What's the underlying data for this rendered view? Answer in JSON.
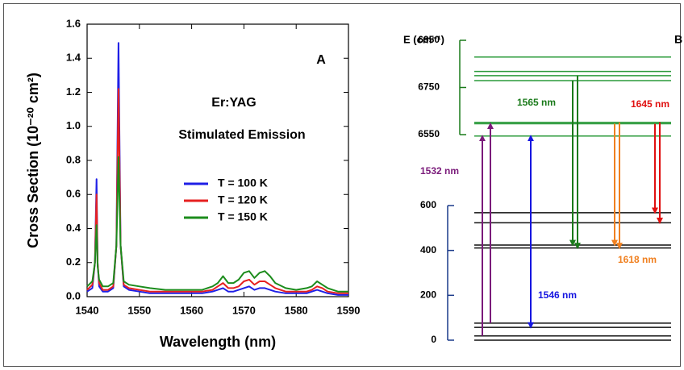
{
  "chart_data": {
    "type": "line",
    "xlabel": "Wavelength (nm)",
    "ylabel": "Cross Section (10⁻²⁰ cm²)",
    "panel_label": "A",
    "annotations": [
      "Er:YAG",
      "Stimulated Emission"
    ],
    "x": [
      1540,
      1541,
      1541.5,
      1541.8,
      1542,
      1542.3,
      1543,
      1544,
      1545,
      1545.6,
      1546,
      1546.4,
      1547,
      1548,
      1550,
      1552,
      1555,
      1558,
      1560,
      1562,
      1564,
      1565,
      1566,
      1567,
      1568,
      1569,
      1570,
      1571,
      1572,
      1573,
      1574,
      1575,
      1576,
      1578,
      1580,
      1582,
      1583,
      1584,
      1585,
      1586,
      1588,
      1590
    ],
    "series": [
      {
        "name": "T = 100 K",
        "color": "#1f1fe6",
        "values": [
          0.03,
          0.05,
          0.2,
          0.69,
          0.2,
          0.06,
          0.03,
          0.03,
          0.05,
          0.3,
          1.49,
          0.3,
          0.06,
          0.04,
          0.03,
          0.02,
          0.02,
          0.02,
          0.02,
          0.02,
          0.03,
          0.04,
          0.05,
          0.03,
          0.03,
          0.04,
          0.05,
          0.06,
          0.04,
          0.05,
          0.05,
          0.04,
          0.03,
          0.02,
          0.02,
          0.02,
          0.03,
          0.04,
          0.03,
          0.02,
          0.01,
          0.01
        ]
      },
      {
        "name": "T = 120 K",
        "color": "#e62020",
        "values": [
          0.04,
          0.07,
          0.2,
          0.6,
          0.2,
          0.08,
          0.04,
          0.04,
          0.06,
          0.3,
          1.22,
          0.3,
          0.07,
          0.05,
          0.04,
          0.03,
          0.03,
          0.03,
          0.03,
          0.03,
          0.04,
          0.06,
          0.08,
          0.05,
          0.05,
          0.06,
          0.09,
          0.1,
          0.07,
          0.09,
          0.09,
          0.07,
          0.05,
          0.03,
          0.03,
          0.03,
          0.04,
          0.06,
          0.05,
          0.03,
          0.02,
          0.02
        ]
      },
      {
        "name": "T = 150 K",
        "color": "#1c8c1c",
        "values": [
          0.06,
          0.09,
          0.2,
          0.42,
          0.18,
          0.1,
          0.06,
          0.06,
          0.08,
          0.3,
          0.82,
          0.3,
          0.09,
          0.07,
          0.06,
          0.05,
          0.04,
          0.04,
          0.04,
          0.04,
          0.06,
          0.08,
          0.12,
          0.08,
          0.08,
          0.1,
          0.14,
          0.15,
          0.11,
          0.14,
          0.15,
          0.12,
          0.08,
          0.05,
          0.04,
          0.05,
          0.06,
          0.09,
          0.07,
          0.05,
          0.03,
          0.03
        ]
      }
    ],
    "xlim": [
      1540,
      1590
    ],
    "xticks": [
      1540,
      1550,
      1560,
      1570,
      1580,
      1590
    ],
    "ylim": [
      0,
      1.6
    ],
    "yticks": [
      {
        "value": 0,
        "label": "0.0"
      },
      0.2,
      0.4,
      0.6,
      0.8,
      {
        "value": 1,
        "label": "1.0"
      },
      1.2,
      1.4,
      1.6
    ]
  },
  "energy_diagram": {
    "axis_label": "E (cm⁻¹)",
    "panel_label": "B",
    "upper_ticks": [
      6950,
      6750,
      6550
    ],
    "lower_ticks": [
      600,
      400,
      200,
      0
    ],
    "upper_levels": [
      6544,
      6596,
      6602,
      6779,
      6800,
      6818,
      6879
    ],
    "lower_levels": [
      0,
      19,
      57,
      76,
      411,
      424,
      523,
      568
    ],
    "transitions": [
      {
        "label": "1532 nm",
        "color": "#7a1a7a",
        "double": false,
        "arrows": [
          {
            "from": 19,
            "to": 6544
          },
          {
            "from": 76,
            "to": 6596
          }
        ]
      },
      {
        "label": "1546 nm",
        "color": "#1515e0",
        "double": true,
        "arrows": [
          {
            "from": 57,
            "to": 6544
          }
        ]
      },
      {
        "label": "1565 nm",
        "color": "#1a7a1a",
        "double": false,
        "arrows": [
          {
            "from": 6779,
            "to": 424
          },
          {
            "from": 6800,
            "to": 411
          }
        ]
      },
      {
        "label": "1618 nm",
        "color": "#f08020",
        "double": false,
        "arrows": [
          {
            "from": 6596,
            "to": 424
          },
          {
            "from": 6602,
            "to": 411
          }
        ]
      },
      {
        "label": "1645 nm",
        "color": "#e01010",
        "double": false,
        "arrows": [
          {
            "from": 6596,
            "to": 568
          },
          {
            "from": 6602,
            "to": 523
          }
        ]
      }
    ]
  }
}
